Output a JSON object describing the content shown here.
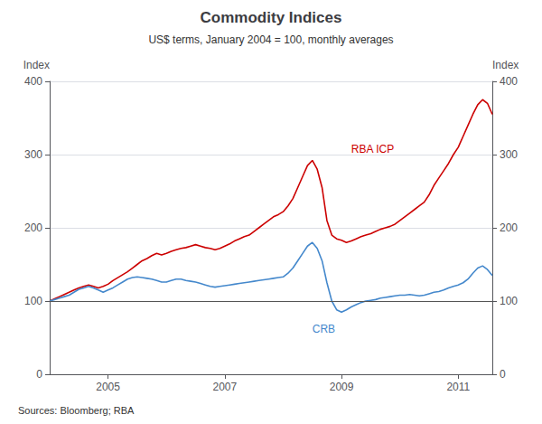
{
  "chart_data": {
    "type": "line",
    "title": "Commodity Indices",
    "subtitle": "US$ terms, January 2004 = 100, monthly averages",
    "ylabel": "Index",
    "y2label": "Index",
    "source": "Sources: Bloomberg; RBA",
    "categories": [
      null,
      null,
      null,
      null,
      null,
      null,
      null,
      null,
      null,
      null,
      null,
      null,
      "2005",
      null,
      null,
      null,
      null,
      null,
      null,
      null,
      null,
      null,
      null,
      null,
      null,
      null,
      null,
      null,
      null,
      null,
      null,
      null,
      null,
      null,
      null,
      null,
      "2007",
      null,
      null,
      null,
      null,
      null,
      null,
      null,
      null,
      null,
      null,
      null,
      null,
      null,
      null,
      null,
      null,
      null,
      null,
      null,
      null,
      null,
      null,
      null,
      "2009",
      null,
      null,
      null,
      null,
      null,
      null,
      null,
      null,
      null,
      null,
      null,
      null,
      null,
      null,
      null,
      null,
      null,
      null,
      null,
      null,
      null,
      null,
      null,
      "2011",
      null,
      null,
      null,
      null,
      null,
      null,
      null
    ],
    "series": [
      {
        "name": "RBA ICP",
        "color": "#cc0000",
        "values": [
          100,
          103,
          106,
          109,
          112,
          115,
          118,
          120,
          122,
          120,
          118,
          120,
          123,
          128,
          132,
          136,
          140,
          145,
          150,
          155,
          158,
          162,
          165,
          163,
          165,
          168,
          170,
          172,
          173,
          175,
          177,
          175,
          173,
          172,
          170,
          172,
          175,
          178,
          182,
          185,
          188,
          190,
          195,
          200,
          205,
          210,
          215,
          218,
          222,
          230,
          240,
          255,
          270,
          285,
          292,
          280,
          255,
          210,
          190,
          185,
          183,
          180,
          182,
          185,
          188,
          190,
          192,
          195,
          198,
          200,
          202,
          205,
          210,
          215,
          220,
          225,
          230,
          235,
          245,
          258,
          268,
          278,
          288,
          300,
          310,
          325,
          340,
          355,
          368,
          375,
          370,
          355
        ]
      },
      {
        "name": "CRB",
        "color": "#4488cc",
        "values": [
          100,
          102,
          104,
          106,
          108,
          112,
          116,
          118,
          120,
          118,
          115,
          112,
          115,
          118,
          122,
          126,
          130,
          132,
          133,
          132,
          131,
          130,
          128,
          126,
          126,
          128,
          130,
          130,
          128,
          127,
          126,
          124,
          122,
          120,
          119,
          120,
          121,
          122,
          123,
          124,
          125,
          126,
          127,
          128,
          129,
          130,
          131,
          132,
          133,
          138,
          145,
          155,
          165,
          175,
          180,
          172,
          155,
          125,
          100,
          88,
          85,
          88,
          92,
          95,
          98,
          100,
          101,
          102,
          104,
          105,
          106,
          107,
          108,
          108,
          109,
          108,
          107,
          108,
          110,
          112,
          113,
          115,
          118,
          120,
          122,
          125,
          130,
          138,
          145,
          148,
          143,
          135
        ]
      }
    ],
    "annotations": [
      {
        "text": "RBA ICP",
        "x": 62,
        "y": 308,
        "color": "#cc0000"
      },
      {
        "text": "CRB",
        "x": 54,
        "y": 62,
        "color": "#4488cc"
      }
    ],
    "hline": 100,
    "ylim": [
      0,
      400
    ],
    "yticks": [
      0,
      100,
      200,
      300,
      400
    ],
    "y2lim": [
      0,
      400
    ],
    "y2ticks": [
      0,
      100,
      200,
      300,
      400
    ],
    "grid": true
  }
}
